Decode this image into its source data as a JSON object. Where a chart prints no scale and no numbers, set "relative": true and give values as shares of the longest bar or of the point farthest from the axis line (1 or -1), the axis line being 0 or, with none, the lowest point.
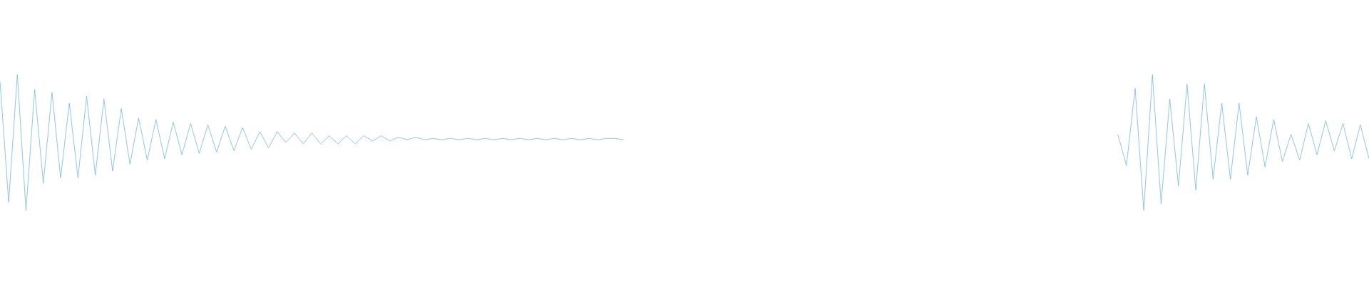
{
  "chart_data": [
    {
      "type": "line",
      "relative": true,
      "color": "#5dade2",
      "categories": [
        null,
        null,
        null,
        null,
        null,
        null,
        null,
        null,
        null,
        null,
        null,
        null,
        null,
        null,
        null,
        null,
        null,
        null,
        null,
        null,
        null,
        null,
        null,
        null,
        null,
        null,
        null,
        null,
        null,
        null,
        null,
        null,
        null,
        null,
        null,
        null,
        null,
        null,
        null,
        null,
        null,
        null,
        null,
        null,
        null,
        null,
        null,
        null,
        null,
        null,
        null,
        null,
        null,
        null,
        null,
        null,
        null,
        null,
        null,
        null,
        null,
        null,
        null,
        null,
        null,
        null,
        null,
        null,
        null,
        null,
        null,
        null,
        null
      ],
      "values": [
        0.95,
        0.06,
        1.0,
        0,
        0.89,
        0.2,
        0.87,
        0.24,
        0.79,
        0.24,
        0.84,
        0.26,
        0.82,
        0.29,
        0.75,
        0.34,
        0.68,
        0.37,
        0.67,
        0.38,
        0.65,
        0.41,
        0.64,
        0.42,
        0.63,
        0.43,
        0.62,
        0.44,
        0.61,
        0.45,
        0.58,
        0.46,
        0.58,
        0.5,
        0.57,
        0.49,
        0.57,
        0.49,
        0.55,
        0.49,
        0.55,
        0.49,
        0.55,
        0.51,
        0.55,
        0.51,
        0.54,
        0.52,
        0.54,
        0.52,
        0.53,
        0.52,
        0.53,
        0.52,
        0.53,
        0.52,
        0.53,
        0.52,
        0.53,
        0.52,
        0.53,
        0.52,
        0.53,
        0.52,
        0.53,
        0.52,
        0.53,
        0.52,
        0.53,
        0.52,
        0.53,
        0.53,
        0.52
      ]
    },
    {
      "type": "line",
      "relative": true,
      "color": "#5dade2",
      "categories": [
        null,
        null,
        null,
        null,
        null,
        null,
        null,
        null,
        null,
        null,
        null,
        null,
        null,
        null,
        null,
        null,
        null,
        null,
        null,
        null,
        null,
        null,
        null,
        null,
        null,
        null,
        null,
        null,
        null,
        null
      ],
      "values": [
        0.56,
        0.33,
        0.9,
        0,
        1.0,
        0.05,
        0.82,
        0.18,
        0.93,
        0.15,
        0.93,
        0.23,
        0.79,
        0.23,
        0.79,
        0.26,
        0.69,
        0.32,
        0.67,
        0.36,
        0.56,
        0.37,
        0.64,
        0.41,
        0.66,
        0.44,
        0.64,
        0.38,
        0.63,
        0.38
      ]
    }
  ]
}
